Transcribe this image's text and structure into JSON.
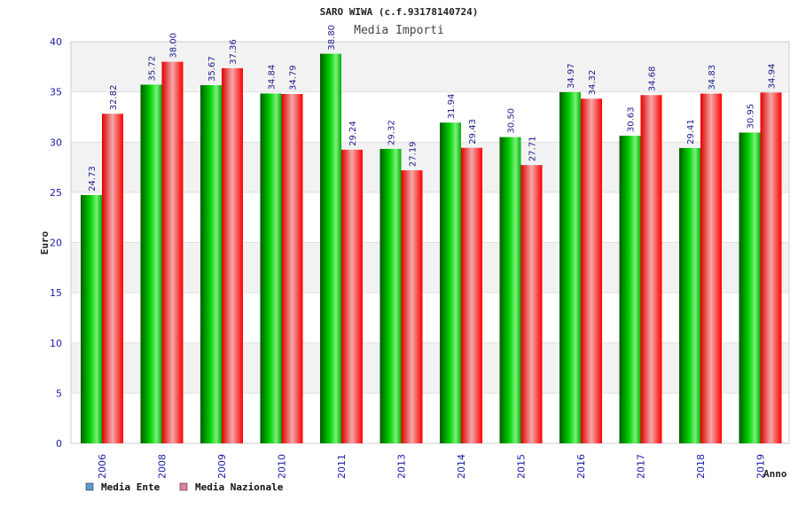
{
  "chart_data": {
    "type": "bar",
    "title": "SARO WIWA (c.f.93178140724)",
    "subtitle": "Media Importi",
    "xlabel": "Anno",
    "ylabel": "Euro",
    "ylim": [
      0,
      40
    ],
    "yticks": [
      0,
      5,
      10,
      15,
      20,
      25,
      30,
      35,
      40
    ],
    "grid": "horizontal bands",
    "legend_position": "bottom-left",
    "categories": [
      "2006",
      "2008",
      "2009",
      "2010",
      "2011",
      "2013",
      "2014",
      "2015",
      "2016",
      "2017",
      "2018",
      "2019"
    ],
    "series": [
      {
        "name": "Media Ente",
        "legend_color": "#5b9bd5",
        "bar_color": "#00cc00",
        "values": [
          24.73,
          35.72,
          35.67,
          34.84,
          38.8,
          29.32,
          31.94,
          30.5,
          34.97,
          30.63,
          29.41,
          30.95
        ],
        "labels": [
          "24.73",
          "35.72",
          "35.67",
          "34.84",
          "38.80",
          "29.32",
          "31.94",
          "30.50",
          "34.97",
          "30.63",
          "29.41",
          "30.95"
        ]
      },
      {
        "name": "Media Nazionale",
        "legend_color": "#e080a8",
        "bar_color": "#ff1a1a",
        "values": [
          32.82,
          38.0,
          37.36,
          34.79,
          29.24,
          27.19,
          29.43,
          27.71,
          34.32,
          34.68,
          34.83,
          34.94
        ],
        "labels": [
          "32.82",
          "38.00",
          "37.36",
          "34.79",
          "29.24",
          "27.19",
          "29.43",
          "27.71",
          "34.32",
          "34.68",
          "34.83",
          "34.94"
        ]
      }
    ]
  }
}
